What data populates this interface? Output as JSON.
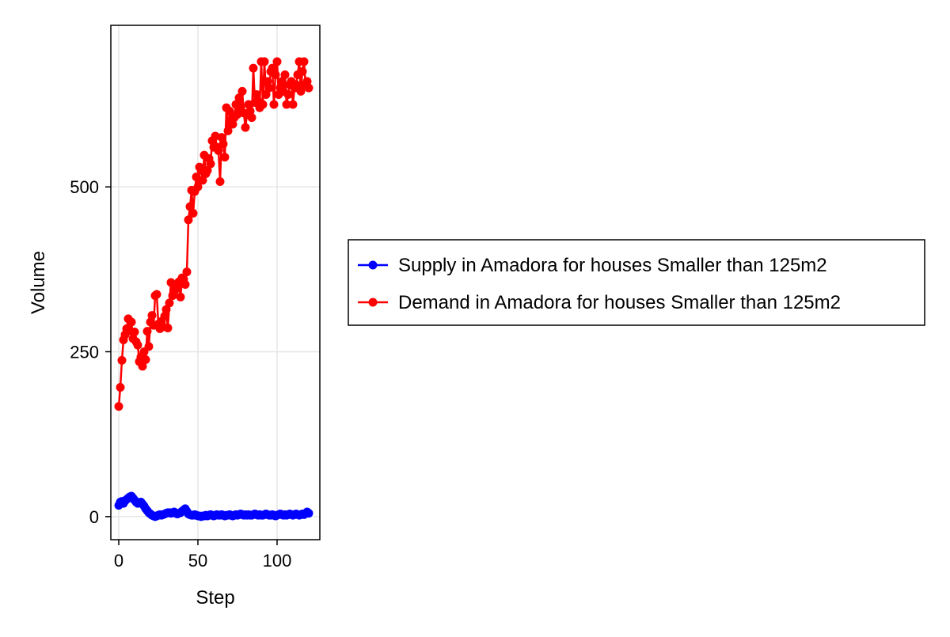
{
  "chart_data": {
    "type": "line",
    "title": "",
    "xlabel": "Step",
    "ylabel": "Volume",
    "xlim": [
      -5,
      127
    ],
    "ylim": [
      -35,
      745
    ],
    "x_ticks": [
      0,
      50,
      100
    ],
    "y_ticks": [
      0,
      250,
      500
    ],
    "x_tick_labels": [
      "0",
      "50",
      "100"
    ],
    "y_tick_labels": [
      "0",
      "250",
      "500"
    ],
    "grid": true,
    "legend_position": "right, outside plot",
    "series": [
      {
        "name": "Supply in Amadora for houses Smaller than 125m2",
        "color": "#0000ff",
        "marker": "circle",
        "x": [
          0,
          1,
          2,
          3,
          4,
          5,
          6,
          7,
          8,
          9,
          10,
          11,
          12,
          13,
          14,
          15,
          16,
          17,
          18,
          19,
          20,
          21,
          22,
          23,
          24,
          25,
          26,
          27,
          28,
          29,
          30,
          31,
          32,
          33,
          34,
          35,
          36,
          37,
          38,
          39,
          40,
          41,
          42,
          43,
          44,
          45,
          46,
          47,
          48,
          49,
          50,
          51,
          52,
          53,
          54,
          55,
          56,
          57,
          58,
          59,
          60,
          61,
          62,
          63,
          64,
          65,
          66,
          67,
          68,
          69,
          70,
          71,
          72,
          73,
          74,
          75,
          76,
          77,
          78,
          79,
          80,
          81,
          82,
          83,
          84,
          85,
          86,
          87,
          88,
          89,
          90,
          91,
          92,
          93,
          94,
          95,
          96,
          97,
          98,
          99,
          100,
          101,
          102,
          103,
          104,
          105,
          106,
          107,
          108,
          109,
          110,
          111,
          112,
          113,
          114,
          115,
          116,
          117,
          118,
          119,
          120
        ],
        "y": [
          17,
          22,
          23,
          20,
          24,
          26,
          28,
          30,
          31,
          28,
          25,
          22,
          20,
          21,
          22,
          19,
          16,
          12,
          9,
          6,
          4,
          2,
          1,
          0,
          1,
          2,
          3,
          2,
          3,
          4,
          5,
          6,
          6,
          5,
          6,
          7,
          5,
          4,
          5,
          6,
          8,
          10,
          12,
          8,
          4,
          3,
          2,
          2,
          3,
          2,
          1,
          1,
          0,
          1,
          1,
          2,
          1,
          2,
          3,
          2,
          1,
          2,
          3,
          2,
          2,
          3,
          2,
          1,
          2,
          2,
          3,
          2,
          1,
          2,
          3,
          2,
          3,
          4,
          3,
          2,
          3,
          2,
          3,
          2,
          2,
          3,
          4,
          3,
          2,
          3,
          2,
          2,
          3,
          4,
          3,
          2,
          2,
          3,
          2,
          1,
          2,
          3,
          4,
          3,
          2,
          3,
          2,
          3,
          4,
          3,
          2,
          3,
          4,
          3,
          2,
          3,
          4,
          3,
          5,
          7,
          5
        ]
      },
      {
        "name": "Demand in Amadora for houses Smaller than 125m2",
        "color": "#ff0000",
        "marker": "circle",
        "x": [
          0,
          1,
          2,
          3,
          4,
          5,
          6,
          7,
          8,
          9,
          10,
          11,
          12,
          13,
          14,
          15,
          16,
          17,
          18,
          19,
          20,
          21,
          22,
          23,
          24,
          25,
          26,
          27,
          28,
          29,
          30,
          31,
          32,
          33,
          34,
          35,
          36,
          37,
          38,
          39,
          40,
          41,
          42,
          43,
          44,
          45,
          46,
          47,
          48,
          49,
          50,
          51,
          52,
          53,
          54,
          55,
          56,
          57,
          58,
          59,
          60,
          61,
          62,
          63,
          64,
          65,
          66,
          67,
          68,
          69,
          70,
          71,
          72,
          73,
          74,
          75,
          76,
          77,
          78,
          79,
          80,
          81,
          82,
          83,
          84,
          85,
          86,
          87,
          88,
          89,
          90,
          91,
          92,
          93,
          94,
          95,
          96,
          97,
          98,
          99,
          100,
          101,
          102,
          103,
          104,
          105,
          106,
          107,
          108,
          109,
          110,
          111,
          112,
          113,
          114,
          115,
          116,
          117,
          118,
          119,
          120
        ],
        "y": [
          167,
          196,
          237,
          268,
          276,
          285,
          300,
          282,
          295,
          270,
          280,
          265,
          260,
          235,
          242,
          228,
          250,
          238,
          281,
          258,
          295,
          305,
          290,
          335,
          337,
          292,
          285,
          296,
          288,
          304,
          314,
          286,
          324,
          355,
          335,
          342,
          345,
          352,
          356,
          333,
          362,
          360,
          352,
          371,
          450,
          470,
          495,
          460,
          493,
          515,
          500,
          530,
          525,
          510,
          548,
          520,
          525,
          543,
          535,
          570,
          560,
          577,
          560,
          555,
          508,
          575,
          565,
          545,
          620,
          585,
          615,
          600,
          595,
          605,
          625,
          610,
          635,
          620,
          645,
          612,
          590,
          610,
          625,
          615,
          605,
          680,
          628,
          640,
          630,
          620,
          690,
          625,
          690,
          640,
          660,
          650,
          675,
          680,
          625,
          670,
          690,
          640,
          650,
          660,
          645,
          670,
          625,
          640,
          655,
          660,
          625,
          650,
          655,
          670,
          690,
          645,
          675,
          690,
          655,
          660,
          650
        ]
      }
    ]
  }
}
